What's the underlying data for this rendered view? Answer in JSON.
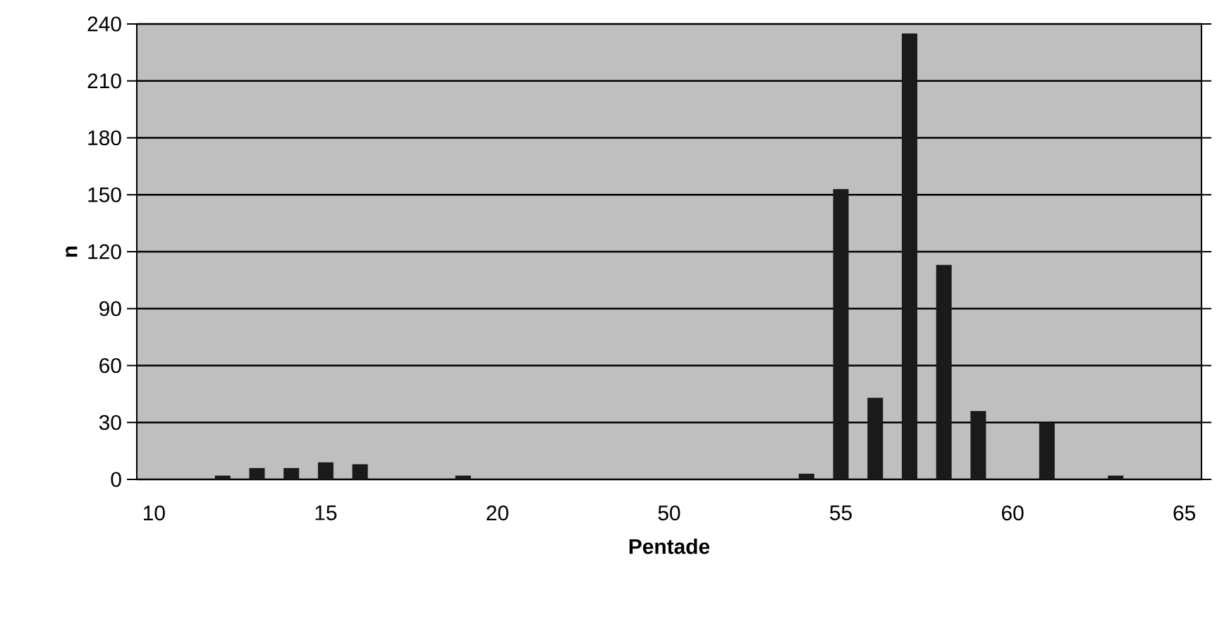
{
  "chart_data": {
    "type": "bar",
    "xlabel": "Pentade",
    "ylabel": "n",
    "categories": [
      "10",
      null,
      null,
      null,
      null,
      "15",
      null,
      null,
      null,
      null,
      "20",
      null,
      null,
      null,
      null,
      "50",
      null,
      null,
      null,
      null,
      "55",
      null,
      null,
      null,
      null,
      "60",
      null,
      null,
      null,
      null,
      "65"
    ],
    "values": [
      0,
      0,
      2,
      6,
      6,
      9,
      8,
      0,
      0,
      2,
      0,
      0,
      0,
      0,
      0,
      0,
      0,
      0,
      0,
      3,
      153,
      43,
      235,
      113,
      36,
      0,
      30,
      0,
      2,
      0,
      0
    ],
    "color": "#1a1a1a",
    "ylim": [
      0,
      240
    ],
    "yticks": [
      0,
      30,
      60,
      90,
      120,
      150,
      180,
      210,
      240
    ],
    "grid": "y"
  }
}
